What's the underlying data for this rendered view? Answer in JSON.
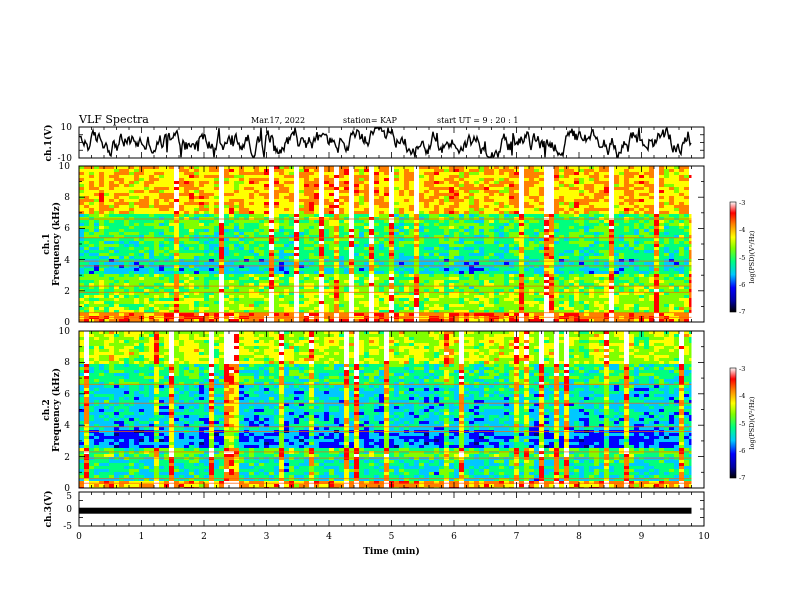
{
  "header": {
    "title": "VLF Spectra",
    "date": "Mar.17, 2022",
    "station": "station= KAP",
    "start": "start  UT =   9 : 20 : 1"
  },
  "chart_data": {
    "type": "heatmap",
    "x_axis": {
      "label": "Time  (min)",
      "range": [
        0,
        10
      ],
      "ticks": [
        "0",
        "1",
        "2",
        "3",
        "4",
        "5",
        "6",
        "7",
        "8",
        "9",
        "10"
      ]
    },
    "panels": [
      {
        "name": "ch.1(V)",
        "type": "line",
        "ylim": [
          -10,
          10
        ],
        "ticks": [
          "10",
          "-10"
        ],
        "data_end_min": 9.8
      },
      {
        "name": "ch.1 spectrogram",
        "type": "heatmap",
        "ylabel": "ch.1\nFrequency (kHz)",
        "ylabel_lines": [
          "ch.1",
          "Frequency (kHz)"
        ],
        "ylim": [
          0,
          10
        ],
        "ticks": [
          "0",
          "2",
          "4",
          "6",
          "8",
          "10"
        ],
        "data_end_min": 9.8,
        "colorbar": {
          "label": "log(PSD)(V²/Hz)",
          "range": [
            -7,
            -3
          ],
          "ticks": [
            "-3",
            "-4",
            "-5",
            "-6",
            "-7"
          ]
        }
      },
      {
        "name": "ch.2 spectrogram",
        "type": "heatmap",
        "ylabel": "ch.2\nFrequency (kHz)",
        "ylabel_lines": [
          "ch.2",
          "Frequency (kHz)"
        ],
        "ylim": [
          0,
          10
        ],
        "ticks": [
          "0",
          "2",
          "4",
          "6",
          "8",
          "10"
        ],
        "data_end_min": 9.8,
        "colorbar": {
          "label": "log(PSD)(V²/Hz)",
          "range": [
            -7,
            -3
          ],
          "ticks": [
            "-3",
            "-4",
            "-5",
            "-6",
            "-7"
          ]
        }
      },
      {
        "name": "ch.3(V)",
        "type": "line",
        "ylim": [
          -5,
          5
        ],
        "ticks": [
          "5",
          "0",
          "-5"
        ],
        "level": -0.5,
        "data_end_min": 9.8
      }
    ],
    "grid": false,
    "colormap": [
      "#000080",
      "#0000ff",
      "#00c8ff",
      "#00ff7f",
      "#7fff00",
      "#ffff00",
      "#ff8000",
      "#ff0000",
      "#ffffff"
    ]
  }
}
